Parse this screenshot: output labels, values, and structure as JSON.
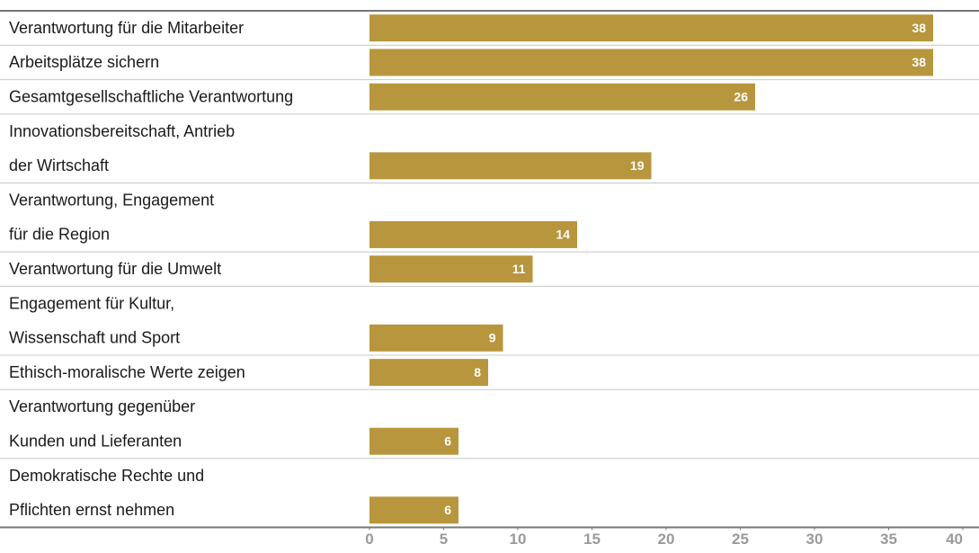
{
  "chart_data": {
    "type": "barh",
    "categories": [
      [
        "Verantwortung für die Mitarbeiter"
      ],
      [
        "Arbeitsplätze sichern"
      ],
      [
        "Gesamtgesellschaftliche Verantwortung"
      ],
      [
        "Innovationsbereitschaft, Antrieb",
        "der Wirtschaft"
      ],
      [
        "Verantwortung, Engagement",
        "für die Region"
      ],
      [
        "Verantwortung für die Umwelt"
      ],
      [
        "Engagement für Kultur,",
        "Wissenschaft und Sport"
      ],
      [
        "Ethisch-moralische Werte zeigen"
      ],
      [
        "Verantwortung gegenüber",
        "Kunden und Lieferanten"
      ],
      [
        "Demokratische Rechte und",
        "Pflichten ernst nehmen"
      ]
    ],
    "values": [
      38,
      38,
      26,
      19,
      14,
      11,
      9,
      8,
      6,
      6
    ],
    "color": "#b8963e",
    "xlim": [
      0,
      40
    ],
    "xticks": [
      0,
      5,
      10,
      15,
      20,
      25,
      30,
      35,
      40
    ]
  }
}
